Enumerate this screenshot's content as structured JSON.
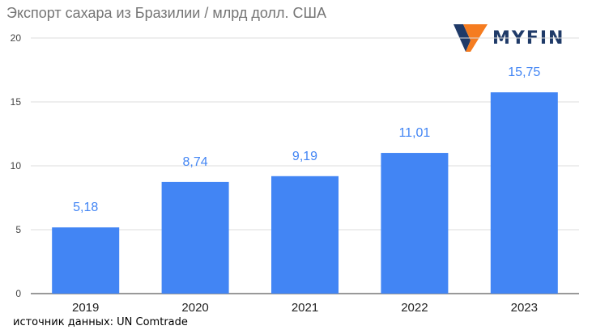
{
  "header": {
    "title": "Экспорт сахара из Бразилии / млрд долл. США"
  },
  "logo": {
    "text": "MYFIN",
    "icon": "myfin-logo-icon",
    "mark_color": "#f57c20",
    "mark_dark_color": "#1f3a68"
  },
  "footer": {
    "source": "источник данных: UN Comtrade"
  },
  "chart_data": {
    "type": "bar",
    "title": "Экспорт сахара из Бразилии / млрд долл. США",
    "xlabel": "",
    "ylabel": "",
    "categories": [
      "2019",
      "2020",
      "2021",
      "2022",
      "2023"
    ],
    "values": [
      5.18,
      8.74,
      9.19,
      11.01,
      15.75
    ],
    "value_labels": [
      "5,18",
      "8,74",
      "9,19",
      "11,01",
      "15,75"
    ],
    "ylim": [
      0,
      20
    ],
    "yticks": [
      0,
      5,
      10,
      15,
      20
    ],
    "ytick_labels": [
      "0",
      "5",
      "10",
      "15",
      "20"
    ],
    "grid": true,
    "legend": "none",
    "bar_color": "#4285f4",
    "label_color": "#4285f4",
    "grid_color": "#dcdcdc"
  }
}
